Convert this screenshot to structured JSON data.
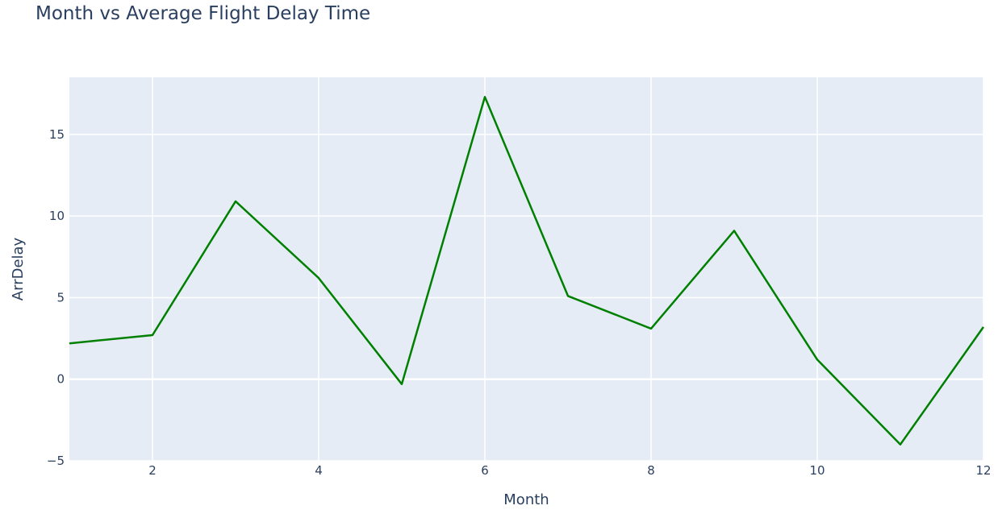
{
  "chart_data": {
    "type": "line",
    "title": "Month vs Average Flight Delay Time",
    "xlabel": "Month",
    "ylabel": "ArrDelay",
    "xlim": [
      1,
      12
    ],
    "ylim": [
      -5,
      18.5
    ],
    "x_ticks": [
      2,
      4,
      6,
      8,
      10,
      12
    ],
    "y_ticks": [
      -5,
      0,
      5,
      10,
      15
    ],
    "grid": true,
    "legend": "none",
    "plot_background": "#e5ecf6",
    "series": [
      {
        "color": "#008000",
        "x": [
          1,
          2,
          3,
          4,
          5,
          6,
          7,
          8,
          9,
          10,
          11,
          12
        ],
        "y": [
          2.2,
          2.7,
          10.9,
          6.2,
          -0.3,
          17.3,
          5.1,
          3.1,
          9.1,
          1.2,
          -4.0,
          3.2
        ]
      }
    ]
  }
}
